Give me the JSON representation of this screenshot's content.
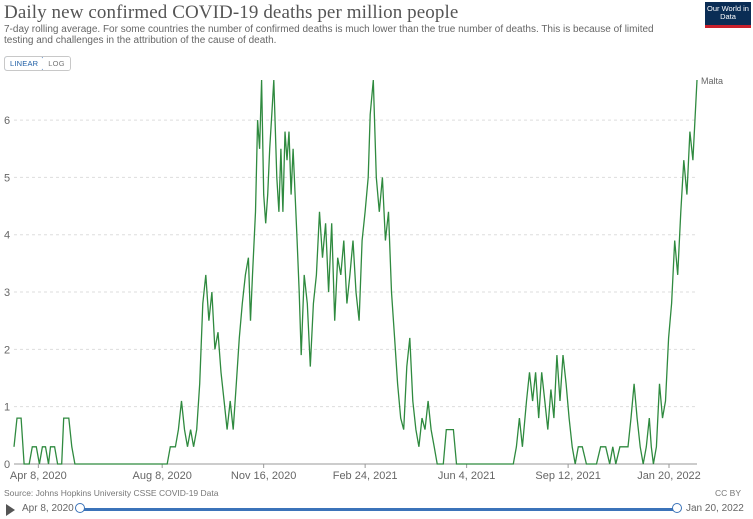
{
  "header": {
    "title": "Daily new confirmed COVID-19 deaths per million people",
    "subtitle": "7-day rolling average. For some countries the number of confirmed deaths is much lower than the true number of deaths. This is because of limited testing and challenges in the attribution of the cause of death.",
    "logo_text": "Our World in Data"
  },
  "controls": {
    "linear_label": "LINEAR",
    "log_label": "LOG",
    "selected": "linear"
  },
  "footer": {
    "source": "Source: Johns Hopkins University CSSE COVID-19 Data",
    "license": "CC BY"
  },
  "timeline": {
    "start_label": "Apr 8, 2020",
    "end_label": "Jan 20, 2022"
  },
  "colors": {
    "line": "#2f8a3f",
    "grid": "#dddddd",
    "axis": "#999999",
    "timeline": "#3b73b9",
    "logo_bg": "#0a2d55",
    "logo_accent": "#c8202c"
  },
  "chart_data": {
    "type": "line",
    "title": "Daily new confirmed COVID-19 deaths per million people",
    "series": [
      {
        "name": "Malta",
        "points": [
          [
            "2020-03-15",
            0.3
          ],
          [
            "2020-03-18",
            0.8
          ],
          [
            "2020-03-22",
            0.8
          ],
          [
            "2020-03-25",
            0
          ],
          [
            "2020-03-30",
            0
          ],
          [
            "2020-04-02",
            0.3
          ],
          [
            "2020-04-06",
            0.3
          ],
          [
            "2020-04-09",
            0
          ],
          [
            "2020-04-12",
            0.3
          ],
          [
            "2020-04-15",
            0.3
          ],
          [
            "2020-04-18",
            0
          ],
          [
            "2020-04-20",
            0.3
          ],
          [
            "2020-04-24",
            0.3
          ],
          [
            "2020-04-27",
            0
          ],
          [
            "2020-05-01",
            0
          ],
          [
            "2020-05-03",
            0.8
          ],
          [
            "2020-05-08",
            0.8
          ],
          [
            "2020-05-11",
            0.3
          ],
          [
            "2020-05-14",
            0
          ],
          [
            "2020-06-01",
            0
          ],
          [
            "2020-07-01",
            0
          ],
          [
            "2020-08-01",
            0
          ],
          [
            "2020-08-13",
            0
          ],
          [
            "2020-08-16",
            0.3
          ],
          [
            "2020-08-21",
            0.3
          ],
          [
            "2020-08-24",
            0.6
          ],
          [
            "2020-08-27",
            1.1
          ],
          [
            "2020-08-30",
            0.6
          ],
          [
            "2020-09-02",
            0.3
          ],
          [
            "2020-09-05",
            0.6
          ],
          [
            "2020-09-08",
            0.3
          ],
          [
            "2020-09-11",
            0.6
          ],
          [
            "2020-09-14",
            1.4
          ],
          [
            "2020-09-17",
            2.8
          ],
          [
            "2020-09-20",
            3.3
          ],
          [
            "2020-09-23",
            2.5
          ],
          [
            "2020-09-26",
            3.0
          ],
          [
            "2020-09-29",
            2.0
          ],
          [
            "2020-10-02",
            2.3
          ],
          [
            "2020-10-05",
            1.6
          ],
          [
            "2020-10-08",
            1.1
          ],
          [
            "2020-10-11",
            0.6
          ],
          [
            "2020-10-14",
            1.1
          ],
          [
            "2020-10-17",
            0.6
          ],
          [
            "2020-10-20",
            1.4
          ],
          [
            "2020-10-23",
            2.2
          ],
          [
            "2020-10-26",
            2.8
          ],
          [
            "2020-10-29",
            3.3
          ],
          [
            "2020-11-01",
            3.6
          ],
          [
            "2020-11-03",
            2.5
          ],
          [
            "2020-11-05",
            3.3
          ],
          [
            "2020-11-08",
            4.4
          ],
          [
            "2020-11-10",
            6.0
          ],
          [
            "2020-11-12",
            5.5
          ],
          [
            "2020-11-14",
            6.7
          ],
          [
            "2020-11-16",
            4.7
          ],
          [
            "2020-11-18",
            4.2
          ],
          [
            "2020-11-20",
            4.7
          ],
          [
            "2020-11-22",
            5.5
          ],
          [
            "2020-11-24",
            6.1
          ],
          [
            "2020-11-26",
            6.7
          ],
          [
            "2020-11-29",
            5.0
          ],
          [
            "2020-12-01",
            4.4
          ],
          [
            "2020-12-03",
            5.5
          ],
          [
            "2020-12-05",
            4.4
          ],
          [
            "2020-12-07",
            5.8
          ],
          [
            "2020-12-09",
            5.3
          ],
          [
            "2020-12-11",
            5.8
          ],
          [
            "2020-12-13",
            4.7
          ],
          [
            "2020-12-15",
            5.5
          ],
          [
            "2020-12-17",
            4.7
          ],
          [
            "2020-12-19",
            3.9
          ],
          [
            "2020-12-21",
            3.0
          ],
          [
            "2020-12-23",
            1.9
          ],
          [
            "2020-12-26",
            3.3
          ],
          [
            "2020-12-29",
            2.8
          ],
          [
            "2021-01-01",
            1.7
          ],
          [
            "2021-01-04",
            2.8
          ],
          [
            "2021-01-07",
            3.3
          ],
          [
            "2021-01-10",
            4.4
          ],
          [
            "2021-01-13",
            3.6
          ],
          [
            "2021-01-16",
            4.2
          ],
          [
            "2021-01-19",
            3.0
          ],
          [
            "2021-01-22",
            4.2
          ],
          [
            "2021-01-25",
            2.5
          ],
          [
            "2021-01-28",
            3.6
          ],
          [
            "2021-01-31",
            3.3
          ],
          [
            "2021-02-03",
            3.9
          ],
          [
            "2021-02-06",
            2.8
          ],
          [
            "2021-02-09",
            3.3
          ],
          [
            "2021-02-12",
            3.9
          ],
          [
            "2021-02-15",
            3.0
          ],
          [
            "2021-02-18",
            2.5
          ],
          [
            "2021-02-21",
            3.9
          ],
          [
            "2021-02-24",
            4.4
          ],
          [
            "2021-02-27",
            5.0
          ],
          [
            "2021-03-01",
            6.1
          ],
          [
            "2021-03-04",
            6.7
          ],
          [
            "2021-03-07",
            5.0
          ],
          [
            "2021-03-10",
            4.4
          ],
          [
            "2021-03-13",
            5.0
          ],
          [
            "2021-03-16",
            3.9
          ],
          [
            "2021-03-19",
            4.4
          ],
          [
            "2021-03-22",
            3.0
          ],
          [
            "2021-03-25",
            2.2
          ],
          [
            "2021-03-28",
            1.4
          ],
          [
            "2021-03-31",
            0.8
          ],
          [
            "2021-04-03",
            0.6
          ],
          [
            "2021-04-06",
            1.7
          ],
          [
            "2021-04-09",
            2.2
          ],
          [
            "2021-04-12",
            1.1
          ],
          [
            "2021-04-15",
            0.6
          ],
          [
            "2021-04-18",
            0.3
          ],
          [
            "2021-04-21",
            0.8
          ],
          [
            "2021-04-24",
            0.6
          ],
          [
            "2021-04-27",
            1.1
          ],
          [
            "2021-04-30",
            0.6
          ],
          [
            "2021-05-03",
            0.3
          ],
          [
            "2021-05-06",
            0
          ],
          [
            "2021-05-12",
            0
          ],
          [
            "2021-05-15",
            0.6
          ],
          [
            "2021-05-22",
            0.6
          ],
          [
            "2021-05-25",
            0
          ],
          [
            "2021-06-10",
            0
          ],
          [
            "2021-07-01",
            0
          ],
          [
            "2021-07-20",
            0
          ],
          [
            "2021-07-23",
            0.3
          ],
          [
            "2021-07-26",
            0.8
          ],
          [
            "2021-07-29",
            0.3
          ],
          [
            "2021-08-02",
            1.1
          ],
          [
            "2021-08-05",
            1.6
          ],
          [
            "2021-08-08",
            1.1
          ],
          [
            "2021-08-11",
            1.6
          ],
          [
            "2021-08-14",
            0.8
          ],
          [
            "2021-08-17",
            1.6
          ],
          [
            "2021-08-20",
            1.1
          ],
          [
            "2021-08-23",
            0.6
          ],
          [
            "2021-08-26",
            1.3
          ],
          [
            "2021-08-29",
            0.8
          ],
          [
            "2021-09-01",
            1.9
          ],
          [
            "2021-09-04",
            1.1
          ],
          [
            "2021-09-07",
            1.9
          ],
          [
            "2021-09-10",
            1.4
          ],
          [
            "2021-09-13",
            0.8
          ],
          [
            "2021-09-16",
            0.3
          ],
          [
            "2021-09-19",
            0
          ],
          [
            "2021-09-22",
            0.3
          ],
          [
            "2021-09-26",
            0.3
          ],
          [
            "2021-09-30",
            0
          ],
          [
            "2021-10-05",
            0
          ],
          [
            "2021-10-10",
            0
          ],
          [
            "2021-10-14",
            0.3
          ],
          [
            "2021-10-19",
            0.3
          ],
          [
            "2021-10-23",
            0
          ],
          [
            "2021-10-26",
            0.3
          ],
          [
            "2021-10-29",
            0
          ],
          [
            "2021-11-02",
            0.3
          ],
          [
            "2021-11-06",
            0.3
          ],
          [
            "2021-11-10",
            0.3
          ],
          [
            "2021-11-13",
            0.8
          ],
          [
            "2021-11-16",
            1.4
          ],
          [
            "2021-11-19",
            0.8
          ],
          [
            "2021-11-22",
            0.3
          ],
          [
            "2021-11-25",
            0
          ],
          [
            "2021-11-28",
            0.3
          ],
          [
            "2021-12-01",
            0.8
          ],
          [
            "2021-12-03",
            0.3
          ],
          [
            "2021-12-05",
            0
          ],
          [
            "2021-12-08",
            0.3
          ],
          [
            "2021-12-11",
            1.4
          ],
          [
            "2021-12-14",
            0.8
          ],
          [
            "2021-12-17",
            1.1
          ],
          [
            "2021-12-20",
            2.2
          ],
          [
            "2021-12-23",
            2.8
          ],
          [
            "2021-12-26",
            3.9
          ],
          [
            "2021-12-29",
            3.3
          ],
          [
            "2022-01-01",
            4.4
          ],
          [
            "2022-01-04",
            5.3
          ],
          [
            "2022-01-07",
            4.7
          ],
          [
            "2022-01-10",
            5.8
          ],
          [
            "2022-01-13",
            5.3
          ],
          [
            "2022-01-17",
            6.7
          ]
        ]
      }
    ],
    "x_ticks": [
      "Apr 8, 2020",
      "Aug 8, 2020",
      "Nov 16, 2020",
      "Feb 24, 2021",
      "Jun 4, 2021",
      "Sep 12, 2021",
      "Jan 20, 2022"
    ],
    "y_ticks": [
      "0",
      "1",
      "2",
      "3",
      "4",
      "5",
      "6"
    ],
    "ylim": [
      0,
      6.7
    ],
    "grid": "horizontal dashed",
    "legend": "label at end of line (top-right)"
  }
}
